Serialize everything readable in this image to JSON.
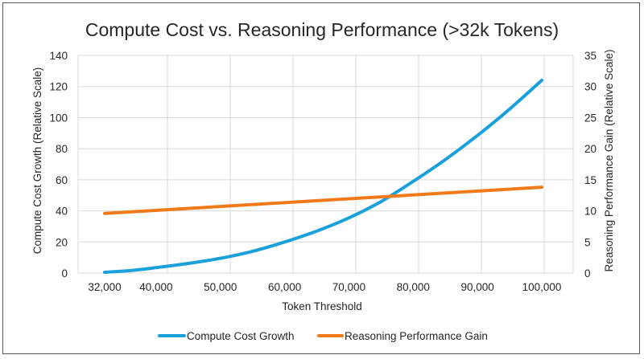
{
  "chart_data": {
    "type": "line",
    "title": "Compute Cost vs. Reasoning Performance (>32k Tokens)",
    "xlabel": "Token Threshold",
    "ylabel_left": "Compute Cost Growth (Relative Scale)",
    "ylabel_right": "Reasoning Performance Gain (Relative Scale)",
    "xlim": [
      32000,
      100000
    ],
    "ylim_left": [
      0,
      140
    ],
    "ylim_right": [
      0,
      35
    ],
    "x_ticks": [
      32000,
      40000,
      50000,
      60000,
      70000,
      80000,
      90000,
      100000
    ],
    "x_tick_labels": [
      "32,000",
      "40,000",
      "50,000",
      "60,000",
      "70,000",
      "80,000",
      "90,000",
      "100,000"
    ],
    "y_left_ticks": [
      0,
      20,
      40,
      60,
      80,
      100,
      120,
      140
    ],
    "y_left_tick_labels": [
      "0",
      "20",
      "40",
      "60",
      "80",
      "100",
      "120",
      "140"
    ],
    "y_right_ticks": [
      0,
      5,
      10,
      15,
      20,
      25,
      30,
      35
    ],
    "y_right_tick_labels": [
      "0",
      "5",
      "10",
      "15",
      "20",
      "25",
      "30",
      "35"
    ],
    "grid": "vertical-and-horizontal",
    "legend_position": "bottom",
    "series": [
      {
        "name": "Compute Cost Growth",
        "axis": "left",
        "color": "#1aa0db",
        "x": [
          32000,
          36000,
          40000,
          45000,
          50000,
          55000,
          60000,
          65000,
          70000,
          75000,
          80000,
          85000,
          90000,
          95000,
          100000
        ],
        "y": [
          0.5,
          1.6,
          3.5,
          6.2,
          9.5,
          14.0,
          20.0,
          27.0,
          35.5,
          46.0,
          59.0,
          73.0,
          88.5,
          105.5,
          124.0
        ]
      },
      {
        "name": "Reasoning Performance Gain",
        "axis": "right",
        "color": "#f07a1a",
        "x": [
          32000,
          100000
        ],
        "y": [
          9.6,
          13.8
        ]
      }
    ]
  }
}
